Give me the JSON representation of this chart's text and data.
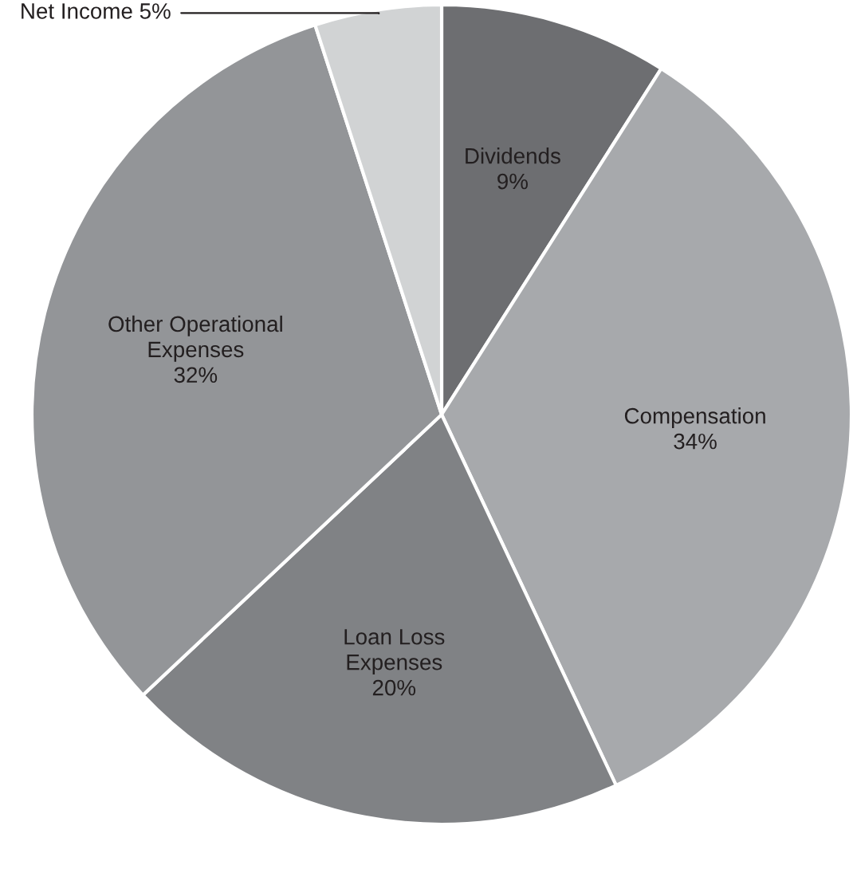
{
  "chart_data": {
    "type": "pie",
    "categories": [
      "Dividends",
      "Compensation",
      "Loan Loss\nExpenses",
      "Other Operational\nExpenses",
      "Net Income"
    ],
    "values": [
      9,
      34,
      20,
      32,
      5
    ],
    "value_labels": [
      "9%",
      "34%",
      "20%",
      "32%",
      "5%"
    ],
    "colors": [
      "#6d6e71",
      "#a7a9ac",
      "#808285",
      "#939598",
      "#d1d3d4"
    ],
    "legend": false
  }
}
